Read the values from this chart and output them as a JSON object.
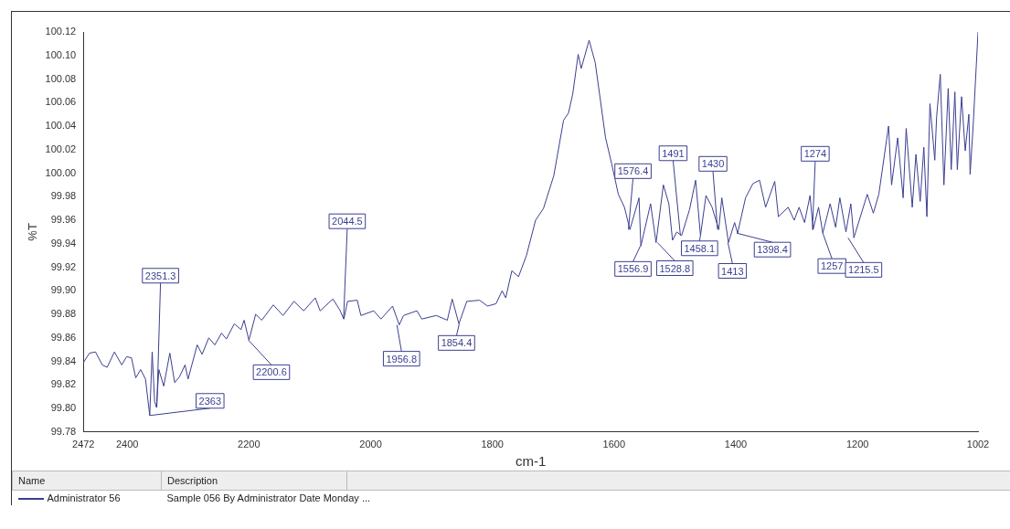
{
  "chart_data": {
    "type": "line",
    "xlabel": "cm-1",
    "ylabel": "%T",
    "legend": "bottom",
    "grid": false,
    "marker": "none",
    "line_style": "solid",
    "xlim": [
      2472,
      1002
    ],
    "xticks": [
      2472,
      2400,
      2200,
      2000,
      1800,
      1600,
      1400,
      1200,
      1002
    ],
    "ylim": [
      99.78,
      100.12
    ],
    "yticks": [
      99.78,
      {
        "value": 99.8,
        "label": "99.80"
      },
      99.82,
      99.84,
      99.86,
      99.88,
      {
        "value": 99.9,
        "label": "99.90"
      },
      99.92,
      99.94,
      99.96,
      99.98,
      {
        "value": 100,
        "label": "100.00"
      },
      100.02,
      100.04,
      100.06,
      100.08,
      {
        "value": 100.1,
        "label": "100.10"
      },
      100.12
    ],
    "series": [
      {
        "name": "Administrator 56",
        "color": "#3b3f8f",
        "x": [
          2472,
          2462,
          2452,
          2441,
          2433,
          2421,
          2409,
          2401,
          2393,
          2386,
          2378,
          2370,
          2363,
          2359,
          2355,
          2352,
          2348,
          2340,
          2330,
          2322,
          2314,
          2305,
          2300,
          2285,
          2277,
          2266,
          2256,
          2245,
          2237,
          2224,
          2213,
          2208,
          2200,
          2189,
          2179,
          2160,
          2144,
          2126,
          2110,
          2091,
          2083,
          2062,
          2051,
          2044,
          2038,
          2022,
          2016,
          1995,
          1983,
          1964,
          1953,
          1946,
          1924,
          1916,
          1892,
          1874,
          1866,
          1855,
          1842,
          1821,
          1808,
          1794,
          1784,
          1778,
          1768,
          1757,
          1744,
          1729,
          1716,
          1699,
          1683,
          1675,
          1668,
          1659,
          1654,
          1641,
          1631,
          1614,
          1604,
          1593,
          1583,
          1574,
          1559,
          1556,
          1540,
          1531,
          1519,
          1510,
          1504,
          1497,
          1489,
          1476,
          1466,
          1458,
          1449,
          1439,
          1428,
          1423,
          1412,
          1402,
          1397,
          1384,
          1372,
          1361,
          1351,
          1336,
          1330,
          1314,
          1304,
          1296,
          1287,
          1278,
          1273,
          1264,
          1257,
          1245,
          1236,
          1229,
          1219,
          1211,
          1206,
          1184,
          1174,
          1165,
          1149,
          1144,
          1134,
          1125,
          1120,
          1110,
          1104,
          1097,
          1091,
          1086,
          1081,
          1073,
          1070,
          1064,
          1058,
          1051,
          1046,
          1040,
          1036,
          1029,
          1023,
          1017,
          1015,
          1010,
          1002
        ],
        "values": [
          99.839,
          99.847,
          99.848,
          99.837,
          99.835,
          99.848,
          99.837,
          99.844,
          99.843,
          99.826,
          99.833,
          99.825,
          99.794,
          99.848,
          99.806,
          99.801,
          99.833,
          99.819,
          99.847,
          99.822,
          99.827,
          99.837,
          99.825,
          99.854,
          99.846,
          99.86,
          99.854,
          99.864,
          99.859,
          99.872,
          99.867,
          99.875,
          99.858,
          99.88,
          99.875,
          99.888,
          99.879,
          99.891,
          99.883,
          99.894,
          99.883,
          99.893,
          99.884,
          99.876,
          99.891,
          99.892,
          99.879,
          99.883,
          99.876,
          99.887,
          99.871,
          99.879,
          99.883,
          99.876,
          99.879,
          99.875,
          99.893,
          99.872,
          99.891,
          99.892,
          99.887,
          99.889,
          99.9,
          99.894,
          99.917,
          99.912,
          99.93,
          99.96,
          99.97,
          99.998,
          100.045,
          100.051,
          100.067,
          100.101,
          100.089,
          100.113,
          100.094,
          100.03,
          100.008,
          99.982,
          99.971,
          99.952,
          99.979,
          99.938,
          99.974,
          99.941,
          99.99,
          99.974,
          99.943,
          99.95,
          99.947,
          99.969,
          99.994,
          99.947,
          99.981,
          99.971,
          99.952,
          99.979,
          99.941,
          99.958,
          99.949,
          99.979,
          99.991,
          99.994,
          99.971,
          99.993,
          99.963,
          99.971,
          99.96,
          99.971,
          99.958,
          99.981,
          99.952,
          99.971,
          99.949,
          99.974,
          99.954,
          99.979,
          99.95,
          99.974,
          99.945,
          99.982,
          99.966,
          99.982,
          100.04,
          99.99,
          100.03,
          99.979,
          100.038,
          99.971,
          100.016,
          99.976,
          100.022,
          99.963,
          100.059,
          100.011,
          100.048,
          100.084,
          99.99,
          100.072,
          100.003,
          100.069,
          100.003,
          100.065,
          100.019,
          100.05,
          99.999,
          100.04,
          100.12
        ]
      }
    ],
    "annotations": [
      "Name",
      "Description",
      "Sample 056 By Administrator Date Monday ...",
      {
        "text": "2351.3",
        "x": 2351.3,
        "y": 99.801
      },
      {
        "text": "2363",
        "x": 2363,
        "y": 99.794
      },
      {
        "text": "2200.6",
        "x": 2200.6,
        "y": 99.858
      },
      {
        "text": "2044.5",
        "x": 2044.5,
        "y": 99.876
      },
      {
        "text": "1956.8",
        "x": 1956.8,
        "y": 99.871
      },
      {
        "text": "1854.4",
        "x": 1854.4,
        "y": 99.872
      },
      {
        "text": "1576.4",
        "x": 1576.4,
        "y": 99.952
      },
      {
        "text": "1556.9",
        "x": 1556.9,
        "y": 99.938
      },
      {
        "text": "1528.8",
        "x": 1528.8,
        "y": 99.941
      },
      {
        "text": "1491",
        "x": 1491,
        "y": 99.947
      },
      {
        "text": "1458.1",
        "x": 1458.1,
        "y": 99.947
      },
      {
        "text": "1430",
        "x": 1430,
        "y": 99.952
      },
      {
        "text": "1413",
        "x": 1413,
        "y": 99.941
      },
      {
        "text": "1398.4",
        "x": 1398.4,
        "y": 99.949
      },
      {
        "text": "1274",
        "x": 1274,
        "y": 99.952
      },
      {
        "text": "1257",
        "x": 1257,
        "y": 99.949
      },
      {
        "text": "1215.5",
        "x": 1215.5,
        "y": 99.945
      }
    ]
  }
}
